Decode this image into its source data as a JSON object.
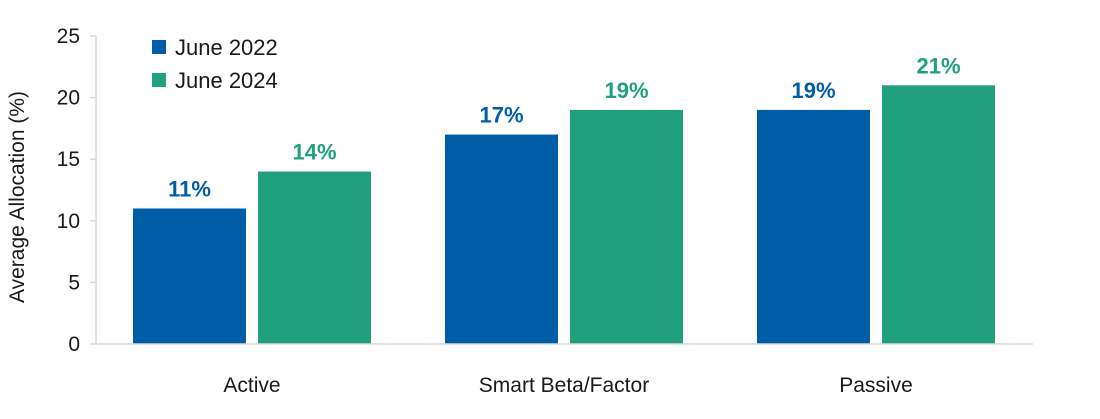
{
  "chart_data": {
    "type": "bar",
    "title": "",
    "xlabel": "",
    "ylabel": "Average Allocation (%)",
    "ylim": [
      0,
      25
    ],
    "yticks": [
      0,
      5,
      10,
      15,
      20,
      25
    ],
    "grid": false,
    "legend_position": "top-left",
    "categories": [
      "Active",
      "Smart Beta/Factor",
      "Passive"
    ],
    "series": [
      {
        "name": "June 2022",
        "color": "#005ea6",
        "values": [
          11,
          17,
          19
        ],
        "labels": [
          "11%",
          "17%",
          "19%"
        ]
      },
      {
        "name": "June 2024",
        "color": "#21a07e",
        "values": [
          14,
          19,
          21
        ],
        "labels": [
          "14%",
          "19%",
          "21%"
        ]
      }
    ]
  }
}
